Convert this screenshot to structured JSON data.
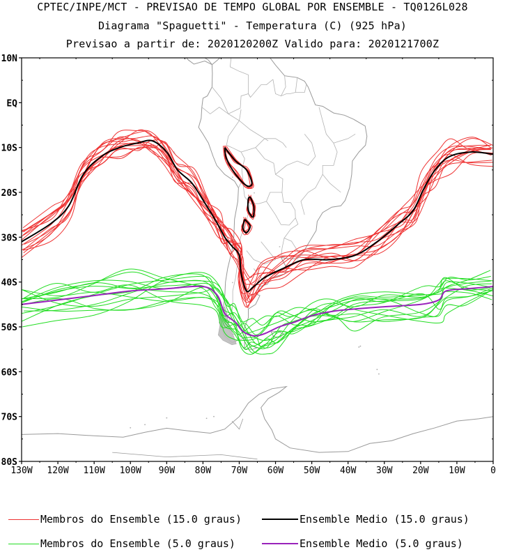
{
  "header": {
    "line1": "CPTEC/INPE/MCT - PREVISAO DE TEMPO GLOBAL POR ENSEMBLE - TQ0126L028",
    "line2": "Diagrama \"Spaguetti\" - Temperatura (C) (925 hPa)",
    "line3": "Previsao a partir de: 2020120200Z  Valido para: 2020121700Z"
  },
  "map": {
    "region": "South America and adjacent South Pacific / South Atlantic",
    "lat_labels": [
      "10N",
      "EQ",
      "10S",
      "20S",
      "30S",
      "40S",
      "50S",
      "60S",
      "70S",
      "80S"
    ],
    "lon_labels": [
      "130W",
      "120W",
      "110W",
      "100W",
      "90W",
      "80W",
      "70W",
      "60W",
      "50W",
      "40W",
      "30W",
      "20W",
      "10W",
      "0"
    ],
    "lat_range": [
      -80,
      10
    ],
    "lon_range": [
      -130,
      0
    ],
    "coastline_color": "#999999"
  },
  "contours": [
    {
      "label": "Membros do Ensemble (15.0 graus)",
      "color": "#ee3333",
      "member_count": 14,
      "mean_label": "Ensemble Medio (15.0 graus)",
      "mean_color": "#000000",
      "mean_path": [
        [
          -130,
          -31
        ],
        [
          -122,
          -27
        ],
        [
          -117,
          -23
        ],
        [
          -113,
          -16
        ],
        [
          -108,
          -12
        ],
        [
          -103,
          -10
        ],
        [
          -98,
          -9
        ],
        [
          -94,
          -8.5
        ],
        [
          -90,
          -11
        ],
        [
          -87,
          -15
        ],
        [
          -83,
          -18
        ],
        [
          -79,
          -23
        ],
        [
          -76,
          -27
        ],
        [
          -74,
          -30
        ],
        [
          -72,
          -32
        ],
        [
          -70,
          -34
        ],
        [
          -69.5,
          -38
        ],
        [
          -68,
          -42
        ],
        [
          -66,
          -41
        ],
        [
          -63,
          -39
        ],
        [
          -58,
          -37
        ],
        [
          -52,
          -35
        ],
        [
          -45,
          -35
        ],
        [
          -38,
          -34
        ],
        [
          -32,
          -31
        ],
        [
          -26,
          -27
        ],
        [
          -22,
          -24
        ],
        [
          -19,
          -19
        ],
        [
          -16,
          -15
        ],
        [
          -12,
          -12
        ],
        [
          -6,
          -11
        ],
        [
          0,
          -11.5
        ]
      ]
    },
    {
      "label": "Membros do Ensemble (5.0 graus)",
      "color": "#22dd22",
      "member_count": 14,
      "mean_label": "Ensemble Medio (5.0 graus)",
      "mean_color": "#9922bb",
      "mean_path": [
        [
          -130,
          -45
        ],
        [
          -120,
          -44
        ],
        [
          -110,
          -43
        ],
        [
          -100,
          -42
        ],
        [
          -90,
          -41.5
        ],
        [
          -80,
          -41
        ],
        [
          -76,
          -43
        ],
        [
          -74,
          -47
        ],
        [
          -71,
          -49
        ],
        [
          -69,
          -51
        ],
        [
          -66,
          -52
        ],
        [
          -63,
          -51.5
        ],
        [
          -59,
          -50
        ],
        [
          -55,
          -49
        ],
        [
          -50,
          -47.5
        ],
        [
          -44,
          -46.5
        ],
        [
          -38,
          -46
        ],
        [
          -30,
          -45.5
        ],
        [
          -20,
          -45
        ],
        [
          -15,
          -44
        ],
        [
          -13,
          -42
        ],
        [
          -7,
          -41.5
        ],
        [
          0,
          -41
        ]
      ]
    }
  ],
  "legend": [
    {
      "label": "Membros do Ensemble (15.0 graus)",
      "color": "#ee3333",
      "weight": "thin"
    },
    {
      "label": "Ensemble Medio (15.0 graus)",
      "color": "#000000",
      "weight": "thick"
    },
    {
      "label": "Membros do Ensemble (5.0 graus)",
      "color": "#22dd22",
      "weight": "thin"
    },
    {
      "label": "Ensemble Medio (5.0 graus)",
      "color": "#9922bb",
      "weight": "thick"
    }
  ]
}
